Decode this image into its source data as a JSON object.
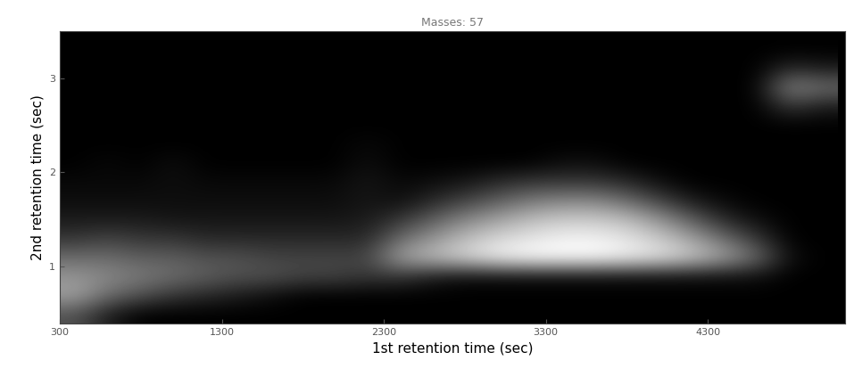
{
  "chart_data": {
    "type": "heatmap",
    "title": "Masses: 57",
    "x_label": "1st retention time (sec)",
    "y_label": "2nd retention time (sec)",
    "xlim": [
      300,
      5150
    ],
    "ylim": [
      0.4,
      3.5
    ],
    "xticks": [
      300,
      1300,
      2300,
      3300,
      4300
    ],
    "yticks": [
      1,
      2,
      3
    ],
    "x_bins": [
      300,
      500,
      700,
      900,
      1100,
      1300,
      1500,
      1700,
      1900,
      2100,
      2300,
      2500,
      2700,
      2900,
      3100,
      3300,
      3500,
      3700,
      3900,
      4100,
      4300,
      4500,
      4700,
      4900,
      5100
    ],
    "y_bins": [
      0.4,
      0.6,
      0.8,
      1.0,
      1.2,
      1.4,
      1.6,
      1.8,
      2.0,
      2.2,
      2.4,
      2.6,
      2.8,
      3.0,
      3.2,
      3.4
    ],
    "cells": [
      [
        30,
        10,
        0,
        0,
        0,
        0,
        0,
        0,
        0,
        0,
        0,
        0,
        0,
        0,
        0,
        0,
        0,
        0,
        0,
        0,
        0,
        0,
        0,
        0
      ],
      [
        60,
        40,
        30,
        20,
        15,
        10,
        5,
        0,
        0,
        0,
        0,
        0,
        0,
        0,
        0,
        0,
        0,
        0,
        0,
        0,
        0,
        0,
        0,
        0
      ],
      [
        55,
        50,
        45,
        40,
        35,
        30,
        30,
        25,
        25,
        20,
        20,
        10,
        5,
        5,
        5,
        5,
        5,
        5,
        5,
        5,
        5,
        5,
        0,
        0
      ],
      [
        40,
        40,
        35,
        35,
        30,
        30,
        25,
        25,
        25,
        25,
        60,
        70,
        80,
        90,
        95,
        95,
        95,
        90,
        85,
        75,
        60,
        40,
        5,
        0
      ],
      [
        20,
        25,
        20,
        20,
        15,
        15,
        15,
        15,
        15,
        15,
        40,
        55,
        70,
        80,
        85,
        90,
        90,
        85,
        75,
        60,
        40,
        20,
        0,
        0
      ],
      [
        10,
        10,
        10,
        8,
        8,
        8,
        8,
        8,
        8,
        10,
        20,
        35,
        50,
        60,
        70,
        75,
        75,
        70,
        55,
        35,
        15,
        5,
        0,
        0
      ],
      [
        5,
        5,
        5,
        5,
        5,
        5,
        5,
        5,
        5,
        8,
        5,
        15,
        25,
        35,
        45,
        50,
        50,
        40,
        25,
        10,
        3,
        0,
        0,
        0
      ],
      [
        3,
        3,
        3,
        5,
        3,
        3,
        3,
        3,
        3,
        8,
        3,
        5,
        8,
        15,
        20,
        20,
        20,
        15,
        5,
        0,
        0,
        0,
        0,
        0
      ],
      [
        0,
        3,
        0,
        5,
        0,
        0,
        0,
        0,
        0,
        5,
        0,
        0,
        0,
        0,
        0,
        5,
        5,
        0,
        0,
        0,
        0,
        0,
        0,
        0
      ],
      [
        0,
        0,
        0,
        0,
        0,
        0,
        0,
        0,
        0,
        3,
        0,
        0,
        0,
        0,
        0,
        0,
        0,
        0,
        0,
        0,
        0,
        0,
        0,
        0
      ],
      [
        0,
        0,
        0,
        0,
        0,
        0,
        0,
        0,
        0,
        0,
        0,
        0,
        0,
        0,
        0,
        0,
        0,
        0,
        0,
        0,
        0,
        0,
        0,
        0
      ],
      [
        0,
        0,
        0,
        0,
        0,
        0,
        0,
        0,
        0,
        0,
        0,
        0,
        0,
        0,
        0,
        0,
        0,
        0,
        0,
        0,
        0,
        0,
        20,
        10
      ],
      [
        0,
        0,
        0,
        0,
        0,
        0,
        0,
        0,
        0,
        0,
        0,
        0,
        0,
        0,
        0,
        0,
        0,
        0,
        0,
        0,
        0,
        0,
        50,
        40
      ],
      [
        0,
        0,
        0,
        0,
        0,
        0,
        0,
        0,
        0,
        0,
        0,
        0,
        0,
        0,
        0,
        0,
        0,
        0,
        0,
        0,
        0,
        0,
        15,
        10
      ],
      [
        0,
        0,
        0,
        0,
        0,
        0,
        0,
        0,
        0,
        0,
        0,
        0,
        0,
        0,
        0,
        0,
        0,
        0,
        0,
        0,
        0,
        0,
        0,
        0
      ]
    ],
    "grid": false
  }
}
